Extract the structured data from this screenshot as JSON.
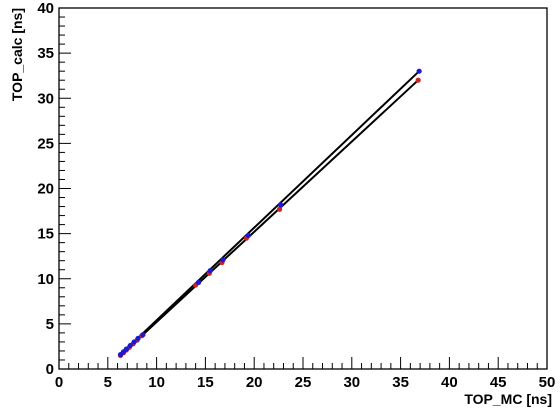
{
  "chart_data": {
    "type": "scatter",
    "title": "",
    "xlabel": "TOP_MC [ns]",
    "ylabel": "TOP_calc [ns]",
    "xlim": [
      0,
      50
    ],
    "ylim": [
      0,
      40
    ],
    "x_ticks": [
      "0",
      "5",
      "10",
      "15",
      "20",
      "25",
      "30",
      "35",
      "40",
      "45",
      "50"
    ],
    "y_ticks": [
      "0",
      "5",
      "10",
      "15",
      "20",
      "25",
      "30",
      "35",
      "40"
    ],
    "grid": false,
    "legend": "none",
    "colors": {
      "red": "#d02020",
      "blue": "#1a1ad0",
      "line": "#000000",
      "frame": "#000000"
    },
    "series": [
      {
        "values_color": "red",
        "points": [
          [
            6.3,
            1.5
          ],
          [
            6.6,
            1.8
          ],
          [
            6.9,
            2.1
          ],
          [
            7.2,
            2.4
          ],
          [
            7.6,
            2.8
          ],
          [
            8.0,
            3.2
          ],
          [
            8.5,
            3.7
          ],
          [
            14.0,
            9.3
          ],
          [
            15.4,
            10.6
          ],
          [
            16.7,
            11.8
          ],
          [
            19.2,
            14.5
          ],
          [
            22.6,
            17.7
          ],
          [
            36.8,
            32.0
          ]
        ]
      },
      {
        "values_color": "blue",
        "points": [
          [
            6.3,
            1.6
          ],
          [
            6.6,
            1.9
          ],
          [
            6.9,
            2.2
          ],
          [
            7.3,
            2.6
          ],
          [
            7.7,
            3.0
          ],
          [
            8.1,
            3.4
          ],
          [
            8.6,
            3.8
          ],
          [
            14.3,
            9.6
          ],
          [
            15.5,
            10.9
          ],
          [
            16.8,
            12.1
          ],
          [
            19.4,
            14.8
          ],
          [
            22.7,
            18.2
          ],
          [
            36.9,
            33.0
          ]
        ]
      }
    ],
    "lines": [
      {
        "x": [
          6.3,
          36.8
        ],
        "y": [
          1.5,
          32.0
        ]
      },
      {
        "x": [
          6.3,
          36.9
        ],
        "y": [
          1.6,
          33.0
        ]
      }
    ]
  }
}
